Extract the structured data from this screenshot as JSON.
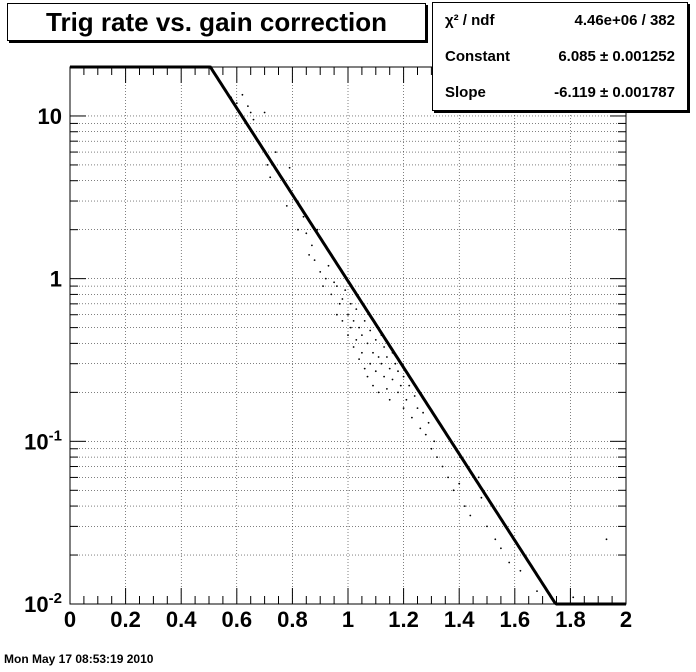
{
  "chart_data": {
    "type": "scatter",
    "title": "Trig rate vs. gain correction",
    "xlabel": "",
    "ylabel": "",
    "xlim": [
      0,
      2
    ],
    "ylim": [
      0.01,
      20
    ],
    "yscale": "log",
    "grid": true,
    "x_ticks": [
      {
        "value": 0,
        "label": "0"
      },
      {
        "value": 0.2,
        "label": "0.2"
      },
      {
        "value": 0.4,
        "label": "0.4"
      },
      {
        "value": 0.6,
        "label": "0.6"
      },
      {
        "value": 0.8,
        "label": "0.8"
      },
      {
        "value": 1.0,
        "label": "1"
      },
      {
        "value": 1.2,
        "label": "1.2"
      },
      {
        "value": 1.4,
        "label": "1.4"
      },
      {
        "value": 1.6,
        "label": "1.6"
      },
      {
        "value": 1.8,
        "label": "1.8"
      },
      {
        "value": 2.0,
        "label": "2"
      }
    ],
    "y_ticks": [
      {
        "value": 10,
        "base": "10",
        "exp": ""
      },
      {
        "value": 1,
        "base": "1",
        "exp": ""
      },
      {
        "value": 0.1,
        "base": "10",
        "exp": "-1"
      },
      {
        "value": 0.01,
        "base": "10",
        "exp": "-2"
      }
    ],
    "fit": {
      "function": "exp(Constant + Slope*x)",
      "constant": 6.085,
      "slope": -6.119,
      "color": "#000000"
    },
    "points": [
      [
        0.58,
        13.0
      ],
      [
        0.6,
        12.0
      ],
      [
        0.62,
        13.5
      ],
      [
        0.64,
        11.5
      ],
      [
        0.65,
        10.5
      ],
      [
        0.66,
        9.5
      ],
      [
        0.7,
        10.5
      ],
      [
        0.71,
        5.0
      ],
      [
        0.72,
        4.2
      ],
      [
        0.74,
        6.0
      ],
      [
        0.78,
        2.8
      ],
      [
        0.79,
        4.8
      ],
      [
        0.82,
        2.0
      ],
      [
        0.84,
        2.4
      ],
      [
        0.85,
        1.9
      ],
      [
        0.86,
        1.4
      ],
      [
        0.87,
        1.6
      ],
      [
        0.88,
        1.3
      ],
      [
        0.89,
        2.0
      ],
      [
        0.9,
        1.1
      ],
      [
        0.91,
        0.9
      ],
      [
        0.92,
        1.0
      ],
      [
        0.93,
        1.2
      ],
      [
        0.94,
        0.8
      ],
      [
        0.95,
        0.95
      ],
      [
        0.96,
        0.9
      ],
      [
        0.96,
        0.6
      ],
      [
        0.97,
        0.7
      ],
      [
        0.98,
        0.75
      ],
      [
        0.98,
        0.55
      ],
      [
        0.99,
        0.85
      ],
      [
        1.0,
        0.6
      ],
      [
        1.0,
        0.45
      ],
      [
        1.01,
        0.5
      ],
      [
        1.01,
        0.7
      ],
      [
        1.02,
        0.38
      ],
      [
        1.02,
        0.55
      ],
      [
        1.03,
        0.42
      ],
      [
        1.03,
        0.65
      ],
      [
        1.04,
        0.32
      ],
      [
        1.04,
        0.5
      ],
      [
        1.05,
        0.35
      ],
      [
        1.05,
        0.45
      ],
      [
        1.06,
        0.28
      ],
      [
        1.06,
        0.55
      ],
      [
        1.07,
        0.4
      ],
      [
        1.07,
        0.25
      ],
      [
        1.08,
        0.3
      ],
      [
        1.08,
        0.48
      ],
      [
        1.09,
        0.35
      ],
      [
        1.09,
        0.22
      ],
      [
        1.1,
        0.42
      ],
      [
        1.1,
        0.27
      ],
      [
        1.11,
        0.33
      ],
      [
        1.11,
        0.2
      ],
      [
        1.12,
        0.3
      ],
      [
        1.12,
        0.45
      ],
      [
        1.13,
        0.25
      ],
      [
        1.13,
        0.38
      ],
      [
        1.14,
        0.21
      ],
      [
        1.14,
        0.33
      ],
      [
        1.15,
        0.28
      ],
      [
        1.15,
        0.18
      ],
      [
        1.16,
        0.35
      ],
      [
        1.16,
        0.24
      ],
      [
        1.17,
        0.3
      ],
      [
        1.18,
        0.2
      ],
      [
        1.18,
        0.27
      ],
      [
        1.19,
        0.22
      ],
      [
        1.2,
        0.25
      ],
      [
        1.2,
        0.16
      ],
      [
        1.21,
        0.18
      ],
      [
        1.22,
        0.22
      ],
      [
        1.23,
        0.14
      ],
      [
        1.24,
        0.19
      ],
      [
        1.25,
        0.16
      ],
      [
        1.26,
        0.12
      ],
      [
        1.27,
        0.15
      ],
      [
        1.28,
        0.11
      ],
      [
        1.29,
        0.13
      ],
      [
        1.3,
        0.09
      ],
      [
        1.31,
        0.1
      ],
      [
        1.32,
        0.08
      ],
      [
        1.34,
        0.07
      ],
      [
        1.36,
        0.06
      ],
      [
        1.38,
        0.05
      ],
      [
        1.4,
        0.055
      ],
      [
        1.42,
        0.04
      ],
      [
        1.44,
        0.035
      ],
      [
        1.47,
        0.06
      ],
      [
        1.48,
        0.045
      ],
      [
        1.5,
        0.03
      ],
      [
        1.53,
        0.025
      ],
      [
        1.55,
        0.022
      ],
      [
        1.58,
        0.018
      ],
      [
        1.62,
        0.016
      ],
      [
        1.68,
        0.012
      ],
      [
        1.81,
        0.011
      ],
      [
        1.93,
        0.025
      ]
    ]
  },
  "stats": [
    {
      "label": "χ² / ndf",
      "value": "4.46e+06 / 382"
    },
    {
      "label": "Constant",
      "value": "6.085 ± 0.001252"
    },
    {
      "label": "Slope",
      "value": "-6.119 ± 0.001787"
    }
  ],
  "timestamp": "Mon May 17 08:53:19 2010"
}
